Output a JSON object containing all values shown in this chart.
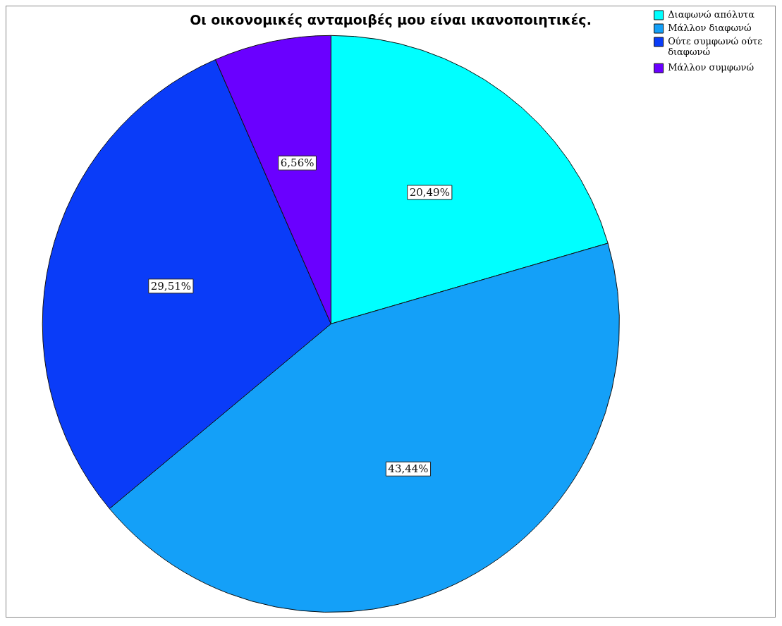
{
  "chart_data": {
    "type": "pie",
    "title": "Οι οικονομικές ανταμοιβές μου είναι ικανοποιητικές.",
    "categories": [
      "Διαφωνώ απόλυτα",
      "Μάλλον διαφωνώ",
      "Ούτε συμφωνώ ούτε διαφωνώ",
      "Μάλλον συμφωνώ"
    ],
    "values": [
      20.49,
      43.44,
      29.51,
      6.56
    ],
    "colors": [
      "#00ffff",
      "#14a0f8",
      "#0a3cf8",
      "#6a00ff"
    ],
    "value_labels": [
      "20,49%",
      "43,44%",
      "29,51%",
      "6,56%"
    ],
    "legend": "top right"
  }
}
